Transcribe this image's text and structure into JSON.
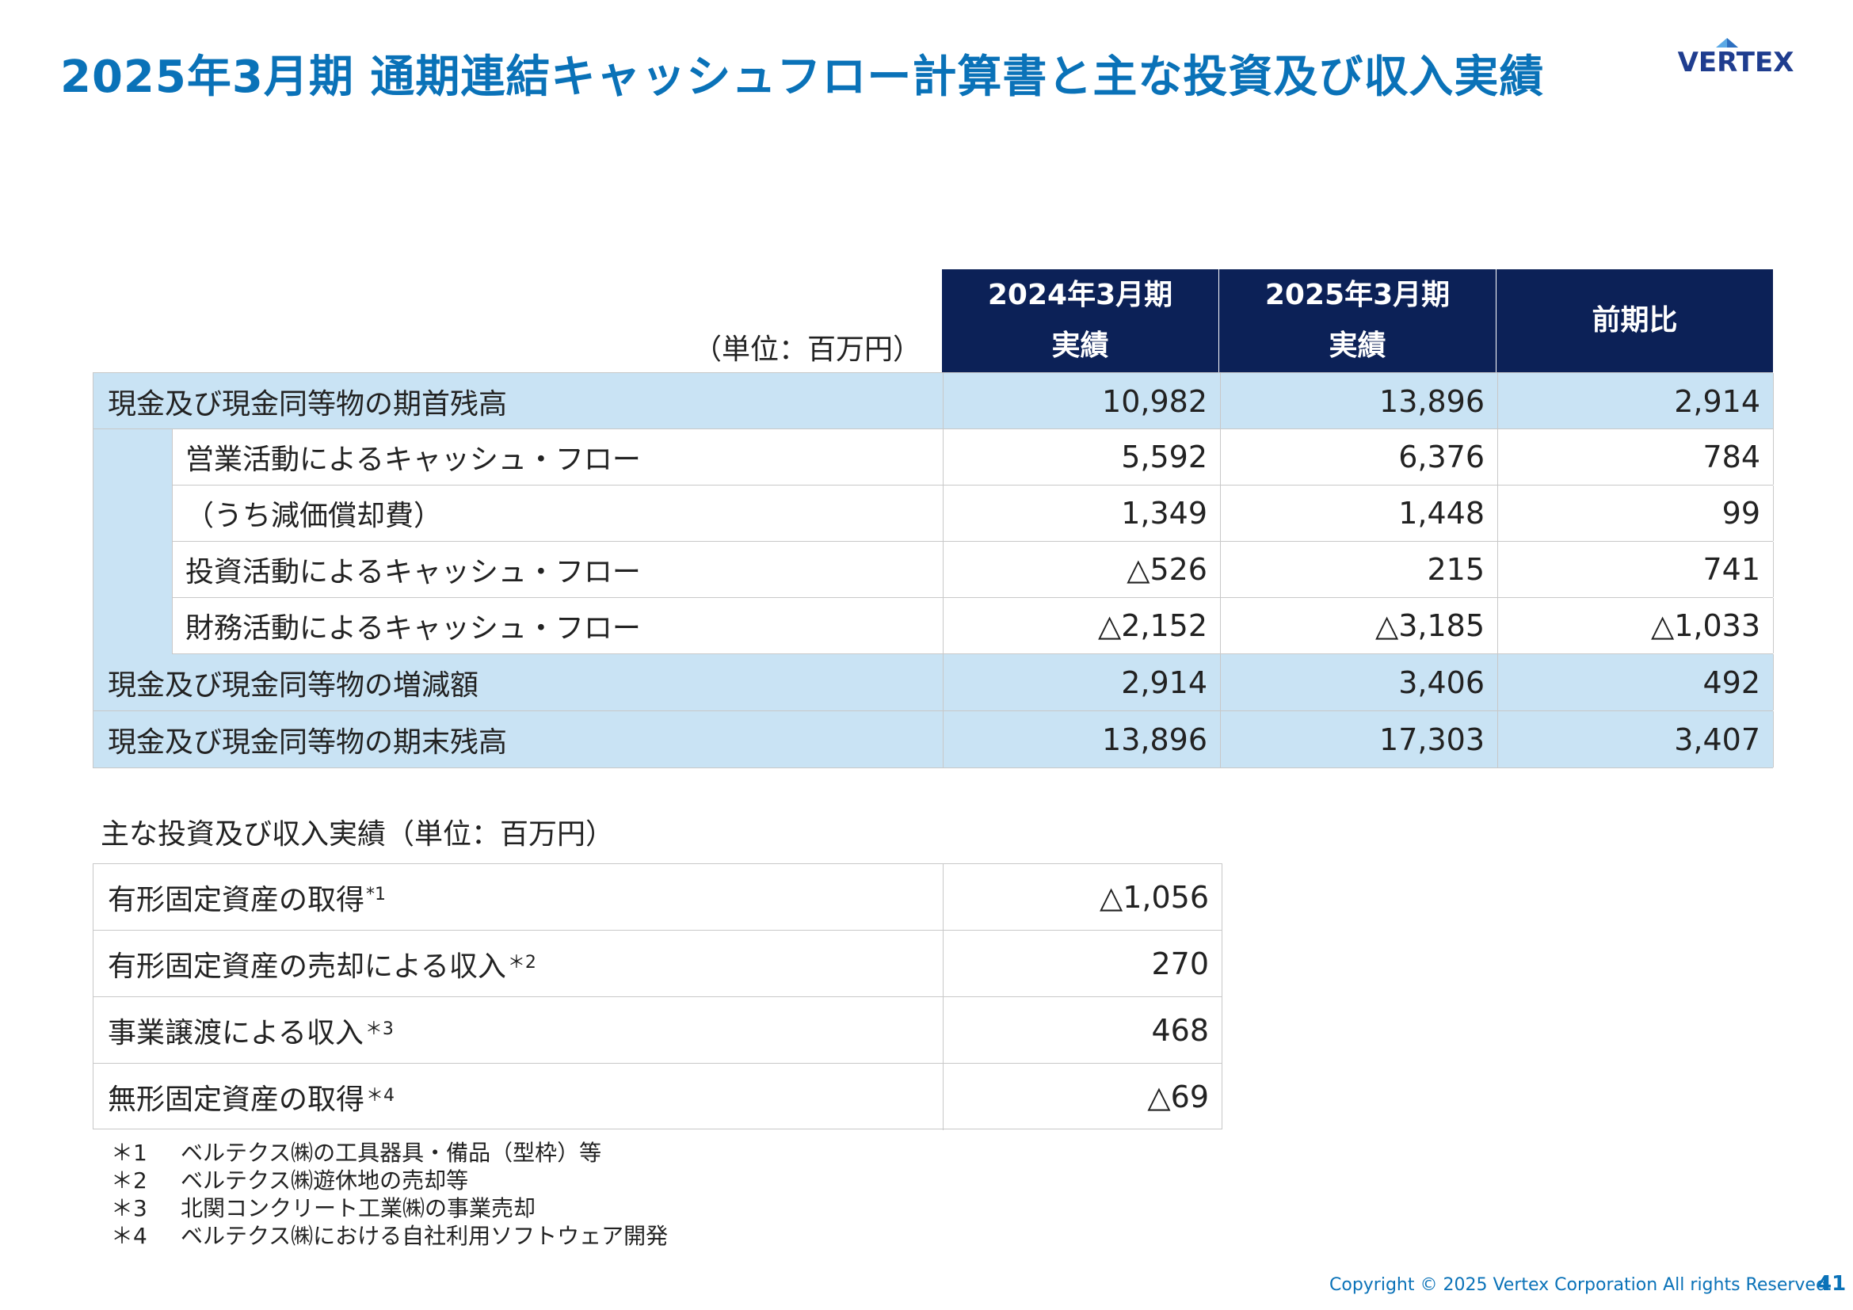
{
  "title": "2025年3月期 通期連結キャッシュフロー計算書と主な投資及び収入実績",
  "logo": {
    "text": "VERTEX",
    "color": "#1f3d8f",
    "accent": "#5aa9e6"
  },
  "cashflow": {
    "unit": "（単位：百万円）",
    "headers": [
      {
        "line1": "2024年3月期",
        "line2": "実績"
      },
      {
        "line1": "2025年3月期",
        "line2": "実績"
      },
      {
        "line1": "前期比",
        "line2": ""
      }
    ],
    "rows": [
      {
        "label": "現金及び現金同等物の期首残高",
        "v1": "10,982",
        "v2": "13,896",
        "v3": "2,914"
      },
      {
        "label": "営業活動によるキャッシュ・フロー",
        "v1": "5,592",
        "v2": "6,376",
        "v3": "784"
      },
      {
        "label": "（うち減価償却費）",
        "v1": "1,349",
        "v2": "1,448",
        "v3": "99"
      },
      {
        "label": "投資活動によるキャッシュ・フロー",
        "v1": "△526",
        "v2": "215",
        "v3": "741"
      },
      {
        "label": "財務活動によるキャッシュ・フロー",
        "v1": "△2,152",
        "v2": "△3,185",
        "v3": "△1,033"
      },
      {
        "label": "現金及び現金同等物の増減額",
        "v1": "2,914",
        "v2": "3,406",
        "v3": "492"
      },
      {
        "label": "現金及び現金同等物の期末残高",
        "v1": "13,896",
        "v2": "17,303",
        "v3": "3,407"
      }
    ]
  },
  "investments": {
    "title": "主な投資及び収入実績（単位：百万円）",
    "rows": [
      {
        "label": "有形固定資産の取得",
        "mark": "*1",
        "value": "△1,056"
      },
      {
        "label": "有形固定資産の売却による収入",
        "mark": "＊2",
        "value": "270"
      },
      {
        "label": "事業譲渡による収入",
        "mark": "＊3",
        "value": "468"
      },
      {
        "label": "無形固定資産の取得",
        "mark": "＊4",
        "value": "△69"
      }
    ]
  },
  "notes": [
    {
      "mark": "＊1",
      "text": "ベルテクス㈱の工具器具・備品（型枠）等"
    },
    {
      "mark": "＊2",
      "text": "ベルテクス㈱遊休地の売却等"
    },
    {
      "mark": "＊3",
      "text": "北関コンクリート工業㈱の事業売却"
    },
    {
      "mark": "＊4",
      "text": "ベルテクス㈱における自社利用ソフトウェア開発"
    }
  ],
  "footer": {
    "copyright": "Copyright © 2025 Vertex Corporation All rights Reserved.",
    "page": "41"
  }
}
